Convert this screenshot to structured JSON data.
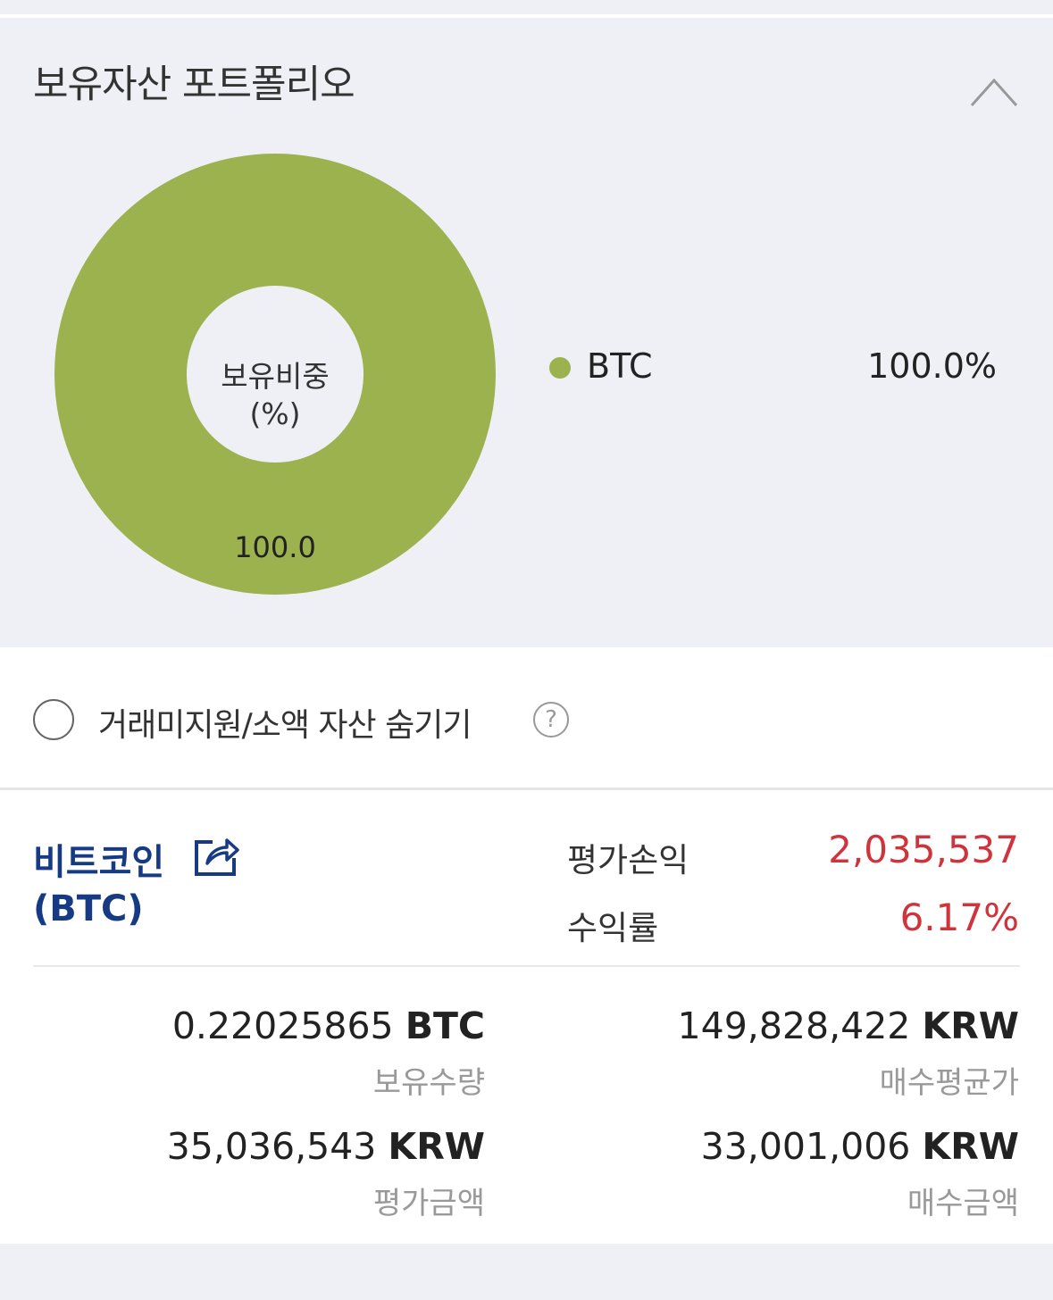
{
  "portfolio": {
    "title": "보유자산 포트폴리오",
    "collapse_icon": "chevron-up-icon",
    "chart_data": {
      "type": "pie",
      "donut": true,
      "center_label": "보유비중\n(%)",
      "center_line1": "보유비중",
      "center_line2": "(%)",
      "categories": [
        "BTC"
      ],
      "values": [
        100.0
      ],
      "slice_labels": [
        "100.0"
      ],
      "colors": [
        "#9bb24f"
      ],
      "legend": [
        {
          "name": "BTC",
          "value": "100.0%"
        }
      ],
      "legend_placement": "right"
    }
  },
  "filter": {
    "label": "거래미지원/소액 자산 숨기기",
    "checked": false,
    "help_icon": "question-circle-icon",
    "help_glyph": "?"
  },
  "asset": {
    "name": "비트코인",
    "symbol": "(BTC)",
    "share_icon": "share-icon",
    "profit_label": "평가손익",
    "profit_value": "2,035,537",
    "rate_label": "수익률",
    "rate_value": "6.17%",
    "accent_color": "#173a84",
    "positive_color": "#d0333c",
    "stats": [
      {
        "value": "0.22025865",
        "unit": "BTC",
        "label": "보유수량"
      },
      {
        "value": "149,828,422",
        "unit": "KRW",
        "label": "매수평균가"
      },
      {
        "value": "35,036,543",
        "unit": "KRW",
        "label": "평가금액"
      },
      {
        "value": "33,001,006",
        "unit": "KRW",
        "label": "매수금액"
      }
    ]
  }
}
